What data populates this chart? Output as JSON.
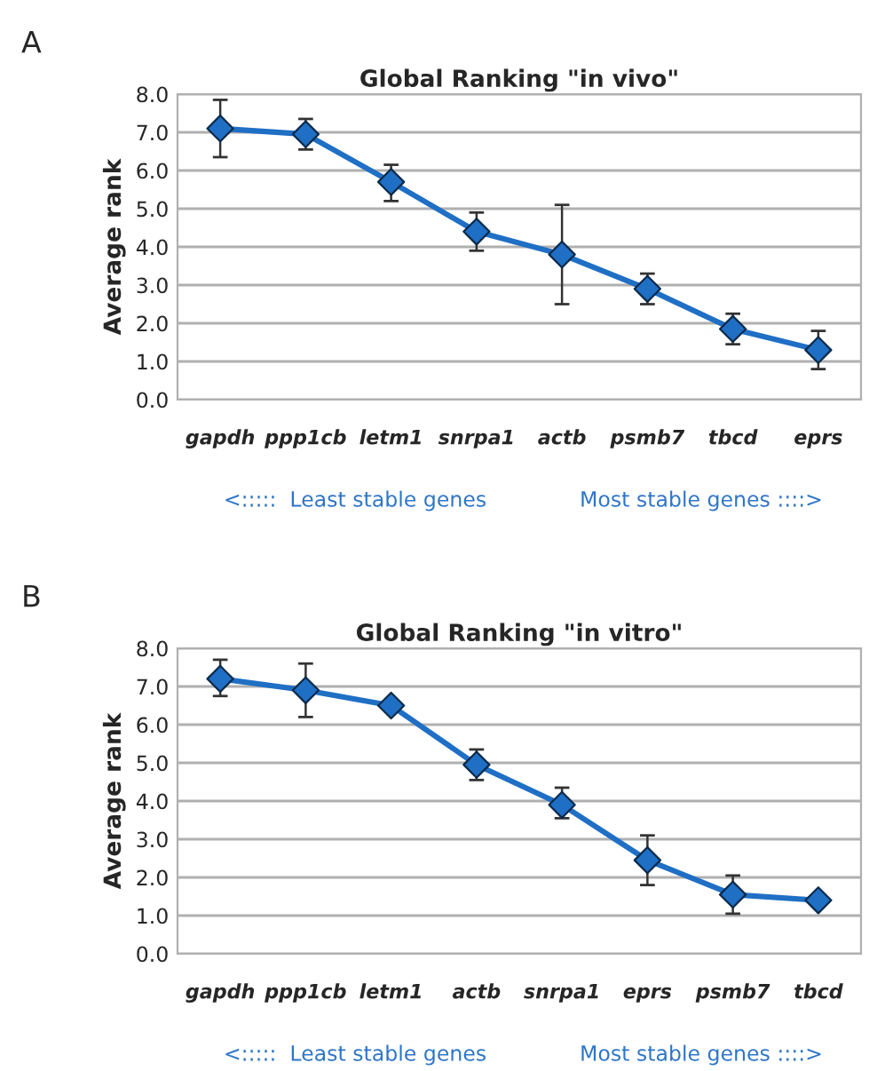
{
  "chart_data": [
    {
      "type": "line",
      "title": "Global Ranking \"in vivo\"",
      "ylabel": "Average rank",
      "categories": [
        "gapdh",
        "ppp1cb",
        "letm1",
        "snrpa1",
        "actb",
        "psmb7",
        "tbcd",
        "eprs"
      ],
      "series": [
        {
          "color": "#1f6fc5",
          "values": [
            7.1,
            6.95,
            5.7,
            4.4,
            3.8,
            2.9,
            1.85,
            1.3
          ],
          "errors": [
            [
              6.35,
              7.85
            ],
            [
              6.55,
              7.35
            ],
            [
              5.2,
              6.15
            ],
            [
              3.9,
              4.9
            ],
            [
              2.5,
              5.1
            ],
            [
              2.5,
              3.3
            ],
            [
              1.45,
              2.25
            ],
            [
              0.8,
              1.8
            ]
          ]
        }
      ],
      "ylim": [
        0,
        8
      ],
      "yticks": [
        {
          "value": 0,
          "label": "0.0"
        },
        {
          "value": 1,
          "label": "1.0"
        },
        {
          "value": 2,
          "label": "2.0"
        },
        {
          "value": 3,
          "label": "3.0"
        },
        {
          "value": 4,
          "label": "4.0"
        },
        {
          "value": 5,
          "label": "5.0"
        },
        {
          "value": 6,
          "label": "6.0"
        },
        {
          "value": 7,
          "label": "7.0"
        },
        {
          "value": 8,
          "label": "8.0"
        }
      ],
      "grid": "y",
      "marker": "diamond",
      "line_style": "solid",
      "annotations": [
        "A",
        "<:::::  Least stable genes",
        "Most stable genes ::::>"
      ]
    },
    {
      "type": "line",
      "title": "Global Ranking \"in vitro\"",
      "ylabel": "Average rank",
      "categories": [
        "gapdh",
        "ppp1cb",
        "letm1",
        "actb",
        "snrpa1",
        "eprs",
        "psmb7",
        "tbcd"
      ],
      "series": [
        {
          "color": "#1f6fc5",
          "values": [
            7.2,
            6.9,
            6.5,
            4.95,
            3.9,
            2.45,
            1.55,
            1.4
          ],
          "errors": [
            [
              6.75,
              7.7
            ],
            [
              6.2,
              7.6
            ],
            null,
            [
              4.55,
              5.35
            ],
            [
              3.55,
              4.35
            ],
            [
              1.8,
              3.1
            ],
            [
              1.05,
              2.05
            ],
            null
          ]
        }
      ],
      "ylim": [
        0,
        8
      ],
      "yticks": [
        {
          "value": 0,
          "label": "0.0"
        },
        {
          "value": 1,
          "label": "1.0"
        },
        {
          "value": 2,
          "label": "2.0"
        },
        {
          "value": 3,
          "label": "3.0"
        },
        {
          "value": 4,
          "label": "4.0"
        },
        {
          "value": 5,
          "label": "5.0"
        },
        {
          "value": 6,
          "label": "6.0"
        },
        {
          "value": 7,
          "label": "7.0"
        },
        {
          "value": 8,
          "label": "8.0"
        }
      ],
      "grid": "y",
      "marker": "diamond",
      "line_style": "solid",
      "annotations": [
        "B",
        "<:::::  Least stable genes",
        "Most stable genes ::::>"
      ]
    }
  ]
}
